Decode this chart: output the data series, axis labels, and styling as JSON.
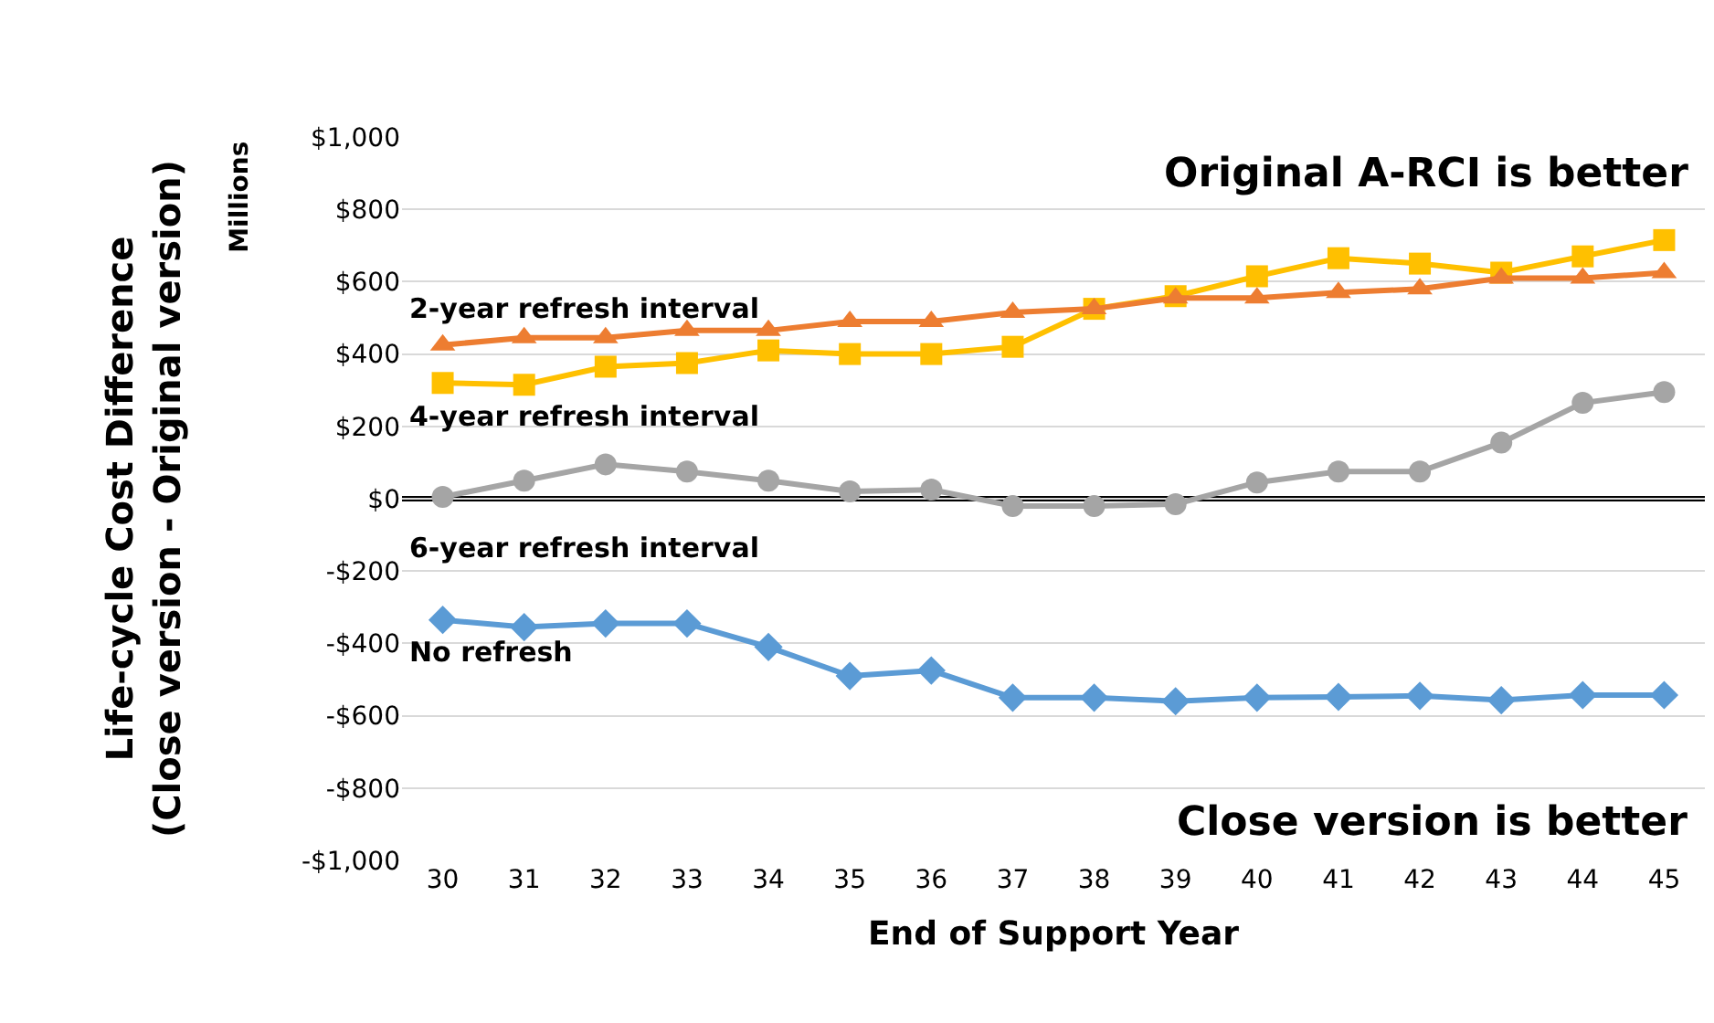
{
  "chart_data": {
    "type": "line",
    "xlabel": "End of Support Year",
    "ylabel": "Life-cycle Cost Difference\n(Close version - Original version)",
    "x": [
      30,
      31,
      32,
      33,
      34,
      35,
      36,
      37,
      38,
      39,
      40,
      41,
      42,
      43,
      44,
      45
    ],
    "xlim": [
      29.5,
      45.5
    ],
    "xticks": [
      30,
      31,
      32,
      33,
      34,
      35,
      36,
      37,
      38,
      39,
      40,
      41,
      42,
      43,
      44,
      45
    ],
    "ylim": [
      -1000,
      1000
    ],
    "yticks": [
      {
        "value": -1000,
        "label": "-$1,000"
      },
      {
        "value": -800,
        "label": "-$800"
      },
      {
        "value": -600,
        "label": "-$600"
      },
      {
        "value": -400,
        "label": "-$400"
      },
      {
        "value": -200,
        "label": "-$200"
      },
      {
        "value": 0,
        "label": "$0"
      },
      {
        "value": 200,
        "label": "$200"
      },
      {
        "value": 400,
        "label": "$400"
      },
      {
        "value": 600,
        "label": "$600"
      },
      {
        "value": 800,
        "label": "$800"
      },
      {
        "value": 1000,
        "label": "$1,000"
      }
    ],
    "grid": "y",
    "legend": false,
    "series": [
      {
        "name": "2-year refresh interval",
        "color": "#ed7d31",
        "marker": "triangle",
        "values": [
          425,
          445,
          445,
          465,
          465,
          490,
          490,
          515,
          525,
          555,
          555,
          570,
          580,
          610,
          610,
          625
        ]
      },
      {
        "name": "4-year refresh interval",
        "color": "#ffc000",
        "marker": "square",
        "values": [
          320,
          315,
          365,
          375,
          410,
          400,
          400,
          420,
          525,
          560,
          615,
          665,
          650,
          625,
          670,
          715
        ]
      },
      {
        "name": "6-year refresh interval",
        "color": "#a5a5a5",
        "marker": "circle",
        "values": [
          5,
          50,
          95,
          75,
          50,
          20,
          25,
          -20,
          -20,
          -15,
          45,
          75,
          75,
          155,
          265,
          295
        ]
      },
      {
        "name": "No refresh",
        "color": "#5b9bd5",
        "marker": "diamond",
        "values": [
          -335,
          -355,
          -345,
          -345,
          -410,
          -490,
          -475,
          -550,
          -550,
          -560,
          -550,
          -548,
          -545,
          -557,
          -543,
          -543
        ]
      }
    ],
    "ref_lines": [
      {
        "axis": "y",
        "value": 0,
        "color": "#000000"
      }
    ],
    "annotations": [
      "Original A-RCI is better",
      "Close version is better",
      "Millions"
    ]
  }
}
